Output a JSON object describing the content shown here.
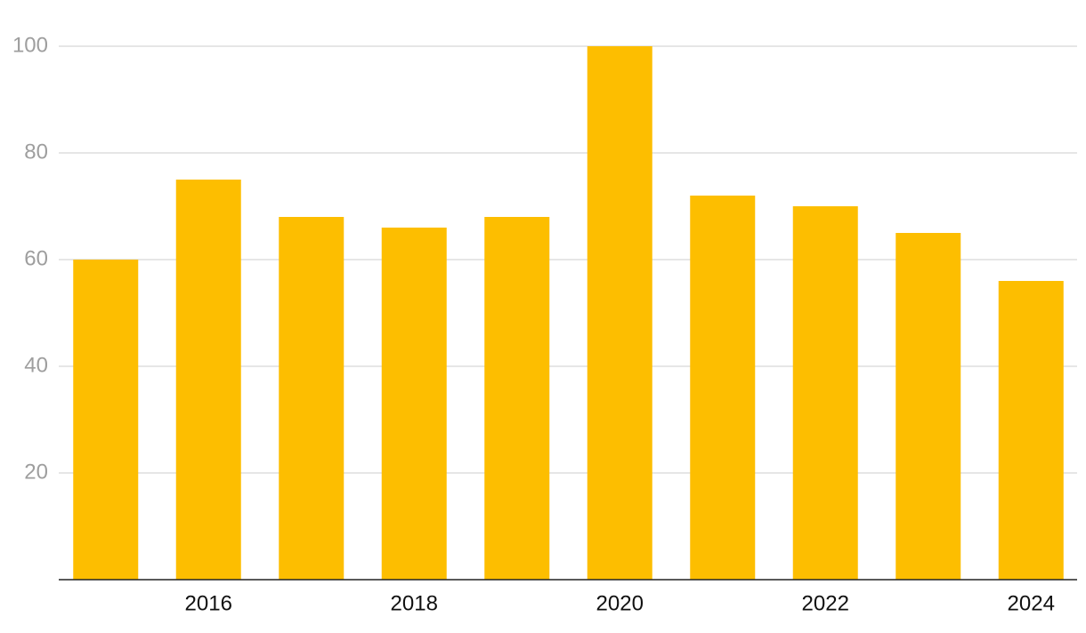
{
  "chart_data": {
    "type": "bar",
    "categories": [
      null,
      "2016",
      null,
      "2018",
      null,
      "2020",
      null,
      "2022",
      null,
      "2024"
    ],
    "values": [
      60,
      75,
      68,
      66,
      68,
      100,
      72,
      70,
      65,
      56
    ],
    "color": "#fdbe00",
    "ylim": [
      0,
      100
    ],
    "yticks": [
      20,
      40,
      60,
      80,
      100
    ],
    "grid": true
  }
}
